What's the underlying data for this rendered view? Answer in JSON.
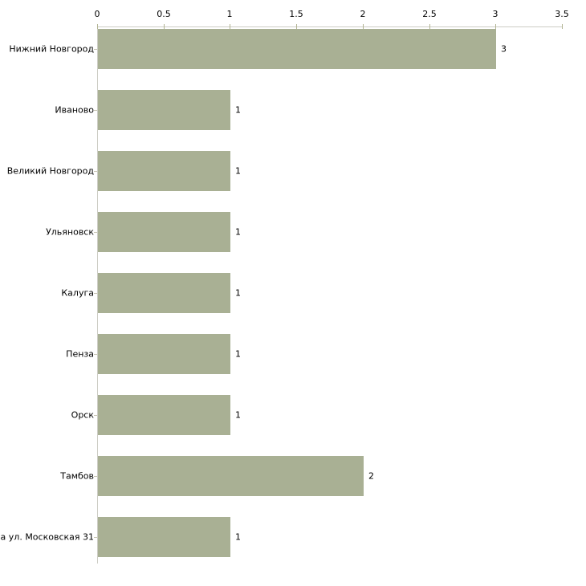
{
  "chart_data": {
    "type": "bar",
    "orientation": "horizontal",
    "title": "",
    "xlabel": "",
    "ylabel": "",
    "categories": [
      "Нижний Новгород",
      "Иваново",
      "Великий Новгород",
      "Ульяновск",
      "Калуга",
      "Пенза",
      "Орск",
      "Тамбов",
      "га ул. Московская 31"
    ],
    "values": [
      3,
      1,
      1,
      1,
      1,
      1,
      1,
      2,
      1
    ],
    "value_labels": [
      "3",
      "1",
      "1",
      "1",
      "1",
      "1",
      "1",
      "2",
      "1"
    ],
    "xlim": [
      0,
      3.5
    ],
    "x_ticks": [
      0,
      0.5,
      1,
      1.5,
      2,
      2.5,
      3,
      3.5
    ],
    "x_tick_labels": [
      "0",
      "0.5",
      "1",
      "1.5",
      "2",
      "2.5",
      "3",
      "3.5"
    ],
    "grid": false,
    "legend": false,
    "axis_position": "top",
    "colors": {
      "bar": "#a9b094",
      "axis_line": "#ccccc4",
      "x_tick": "#b2b493",
      "category_tick": "#c6c4b2",
      "text": "#000000",
      "background": "#ffffff"
    }
  }
}
